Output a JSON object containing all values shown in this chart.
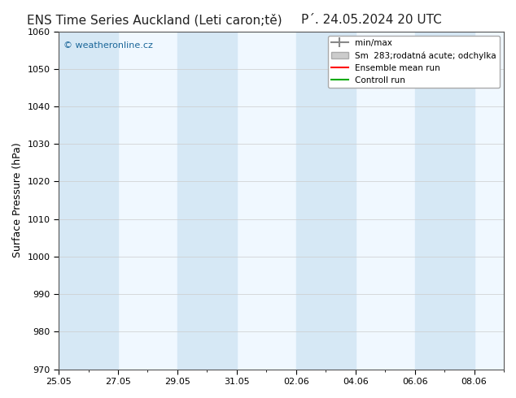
{
  "title": "ENS Time Series Auckland (Leti caron;tě)",
  "title2": "P´. 24.05.2024 20 UTC",
  "ylabel": "Surface Pressure (hPa)",
  "ylim": [
    970,
    1060
  ],
  "yticks": [
    970,
    980,
    990,
    1000,
    1010,
    1020,
    1030,
    1040,
    1050,
    1060
  ],
  "x_start": "2024-05-25",
  "x_end": "2024-06-09",
  "x_tick_labels": [
    "25.05",
    "27.05",
    "29.05",
    "31.05",
    "02.06",
    "04.06",
    "06.06",
    "08.06"
  ],
  "shaded_columns": [
    0,
    2,
    6,
    8,
    12,
    14
  ],
  "shaded_color": "#d6e8f5",
  "bg_color": "#ffffff",
  "plot_bg_color": "#f0f8ff",
  "watermark": "© weatheronline.cz",
  "legend_entries": [
    "min/max",
    "Sm  283;rodatná acute; odchylka",
    "Ensemble mean run",
    "Controll run"
  ],
  "legend_colors": [
    "#888888",
    "#aaaaaa",
    "#ff0000",
    "#00aa00"
  ],
  "title_fontsize": 11,
  "axis_fontsize": 9,
  "tick_fontsize": 8
}
